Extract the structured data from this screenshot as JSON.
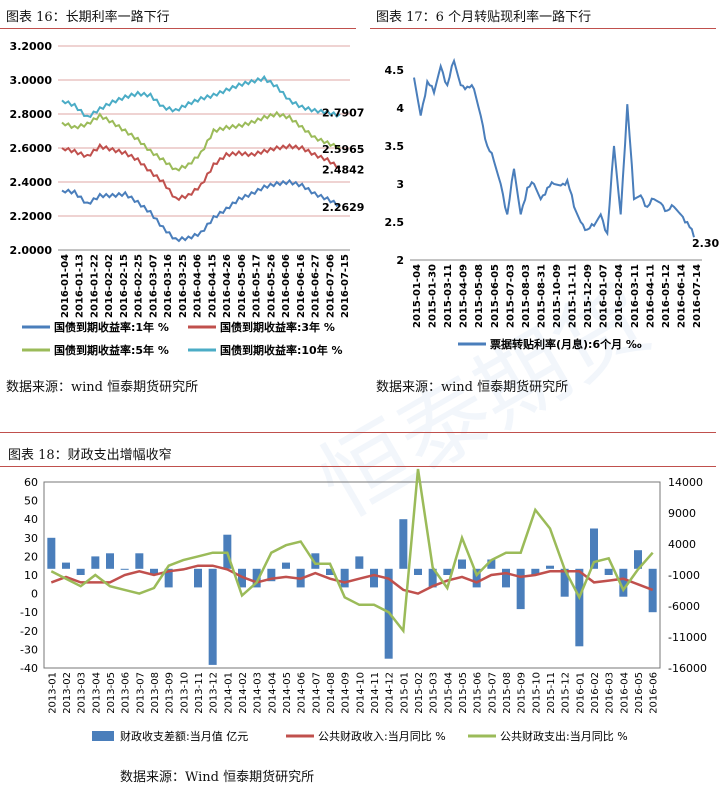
{
  "panels": {
    "fig16": {
      "title": "图表 16：长期利率一路下行",
      "source": "数据来源：wind   恒泰期货研究所"
    },
    "fig17": {
      "title": "图表 17：6 个月转贴现利率一路下行",
      "source": "数据来源：wind   恒泰期货研究所"
    },
    "fig18": {
      "title": "图表 18：财政支出增幅收窄",
      "source": "数据来源：Wind  恒泰期货研究所"
    }
  },
  "colors": {
    "accent_rule": "#c0504d",
    "blue": "#4a7ebb",
    "red": "#c0504d",
    "green": "#9bbb59",
    "cyan": "#4bacc6"
  },
  "chart_data": [
    {
      "type": "line",
      "title": "",
      "ylim": [
        2.0,
        3.2
      ],
      "yticks": [
        "3.2000",
        "3.0000",
        "2.8000",
        "2.6000",
        "2.4000",
        "2.2000",
        "2.0000"
      ],
      "xticks": [
        "2016-01-04",
        "2016-01-13",
        "2016-01-22",
        "2016-02-02",
        "2016-02-15",
        "2016-02-25",
        "2016-03-07",
        "2016-03-16",
        "2016-03-25",
        "2016-04-06",
        "2016-04-15",
        "2016-04-26",
        "2016-05-06",
        "2016-05-17",
        "2016-05-26",
        "2016-06-06",
        "2016-06-16",
        "2016-06-27",
        "2016-07-06",
        "2016-07-15"
      ],
      "series": [
        {
          "name": "国债到期收益率:1年 %",
          "color": "#4a7ebb",
          "end_label": "2.2629",
          "values": [
            2.35,
            2.34,
            2.27,
            2.32,
            2.32,
            2.33,
            2.28,
            2.22,
            2.13,
            2.06,
            2.07,
            2.1,
            2.19,
            2.24,
            2.3,
            2.33,
            2.37,
            2.39,
            2.4,
            2.38,
            2.33,
            2.3,
            2.26
          ]
        },
        {
          "name": "国债到期收益率:3年 %",
          "color": "#c0504d",
          "end_label": "2.4842",
          "values": [
            2.6,
            2.58,
            2.55,
            2.61,
            2.59,
            2.57,
            2.53,
            2.46,
            2.4,
            2.3,
            2.32,
            2.38,
            2.5,
            2.56,
            2.57,
            2.56,
            2.58,
            2.6,
            2.61,
            2.6,
            2.56,
            2.53,
            2.48
          ]
        },
        {
          "name": "国债到期收益率:5年 %",
          "color": "#9bbb59",
          "end_label": "2.5965",
          "values": [
            2.75,
            2.72,
            2.74,
            2.79,
            2.75,
            2.7,
            2.65,
            2.58,
            2.53,
            2.47,
            2.5,
            2.57,
            2.7,
            2.72,
            2.73,
            2.75,
            2.78,
            2.8,
            2.78,
            2.72,
            2.66,
            2.63,
            2.6
          ]
        },
        {
          "name": "国债到期收益率:10年 %",
          "color": "#4bacc6",
          "end_label": "2.7907",
          "values": [
            2.88,
            2.85,
            2.78,
            2.83,
            2.87,
            2.9,
            2.92,
            2.91,
            2.84,
            2.82,
            2.86,
            2.89,
            2.91,
            2.94,
            2.97,
            2.99,
            3.01,
            2.96,
            2.88,
            2.84,
            2.82,
            2.81,
            2.79
          ]
        }
      ]
    },
    {
      "type": "line",
      "title": "",
      "ylim": [
        2,
        4.5
      ],
      "yticks": [
        "4.5",
        "4",
        "3.5",
        "3",
        "2.5",
        "2"
      ],
      "xticks": [
        "2015-01-04",
        "2015-01-30",
        "2015-03-11",
        "2015-04-09",
        "2015-05-08",
        "2015-06-05",
        "2015-07-03",
        "2015-08-03",
        "2015-08-31",
        "2015-10-09",
        "2015-11-11",
        "2015-12-09",
        "2016-01-07",
        "2016-02-04",
        "2016-03-11",
        "2016-04-11",
        "2016-05-12",
        "2016-06-14",
        "2016-07-14"
      ],
      "series": [
        {
          "name": "票据转贴利率(月息):6个月 ‰",
          "color": "#4a7ebb",
          "end_label": "2.30",
          "values": [
            4.4,
            3.9,
            4.35,
            4.2,
            4.55,
            4.3,
            4.62,
            4.3,
            4.28,
            4.25,
            3.9,
            3.5,
            3.3,
            3.0,
            2.6,
            3.2,
            2.6,
            2.95,
            3.0,
            2.8,
            2.95,
            3.0,
            2.98,
            3.05,
            2.7,
            2.5,
            2.4,
            2.45,
            2.6,
            2.35,
            3.5,
            2.6,
            4.05,
            2.8,
            2.85,
            2.7,
            2.8,
            2.75,
            2.65,
            2.7,
            2.6,
            2.5,
            2.3
          ]
        }
      ]
    },
    {
      "type": "bar+line",
      "title": "",
      "ylim_left": [
        -40,
        60
      ],
      "ylim_right": [
        -16000,
        14000
      ],
      "yticks_left": [
        "60",
        "50",
        "40",
        "30",
        "20",
        "10",
        "0",
        "-10",
        "-20",
        "-30",
        "-40"
      ],
      "yticks_right": [
        "14000",
        "9000",
        "4000",
        "-1000",
        "-6000",
        "-11000",
        "-16000"
      ],
      "categories": [
        "2013-01",
        "2013-02",
        "2013-03",
        "2013-04",
        "2013-05",
        "2013-06",
        "2013-07",
        "2013-08",
        "2013-09",
        "2013-10",
        "2013-11",
        "2013-12",
        "2014-01",
        "2014-02",
        "2014-03",
        "2014-04",
        "2014-05",
        "2014-06",
        "2014-07",
        "2014-08",
        "2014-09",
        "2014-10",
        "2014-11",
        "2014-12",
        "2015-01",
        "2015-02",
        "2015-03",
        "2015-04",
        "2015-05",
        "2015-06",
        "2015-07",
        "2015-08",
        "2015-09",
        "2015-10",
        "2015-11",
        "2015-12",
        "2016-01",
        "2016-02",
        "2016-03",
        "2016-04",
        "2016-05",
        "2016-06"
      ],
      "series": [
        {
          "name": "财政收支差额:当月值 亿元",
          "color": "#4a7ebb",
          "kind": "bar",
          "axis": "right",
          "values": [
            5000,
            1000,
            -1000,
            2000,
            2500,
            0,
            2500,
            -1000,
            -3000,
            0,
            -3000,
            -15500,
            5500,
            -3000,
            -3000,
            -2000,
            1000,
            -3000,
            2500,
            -1000,
            -3000,
            2000,
            -3000,
            -14500,
            8000,
            -1000,
            -3000,
            -1000,
            1500,
            -3000,
            1500,
            -3000,
            -6500,
            -1000,
            500,
            -4500,
            -12500,
            6500,
            -1000,
            -4500,
            3000,
            -7000
          ]
        },
        {
          "name": "公共财政收入:当月同比 %",
          "color": "#c0504d",
          "kind": "line",
          "axis": "left",
          "values": [
            6,
            9,
            6,
            6,
            6,
            10,
            12,
            10,
            12,
            13,
            15,
            15,
            13,
            9,
            6,
            8,
            9,
            8,
            11,
            8,
            6,
            8,
            10,
            8,
            2,
            0,
            4,
            7,
            9,
            6,
            10,
            11,
            9,
            10,
            12,
            12,
            12,
            6,
            7,
            8,
            5,
            2
          ]
        },
        {
          "name": "公共财政支出:当月同比 %",
          "color": "#9bbb59",
          "kind": "line",
          "axis": "left",
          "values": [
            12,
            8,
            4,
            10,
            4,
            2,
            0,
            3,
            15,
            18,
            20,
            22,
            22,
            -1,
            6,
            22,
            26,
            28,
            16,
            16,
            -2,
            -6,
            -6,
            -10,
            -20,
            67,
            14,
            3,
            30,
            10,
            18,
            22,
            22,
            45,
            35,
            13,
            -2,
            17,
            19,
            2,
            13,
            22
          ]
        }
      ]
    }
  ]
}
